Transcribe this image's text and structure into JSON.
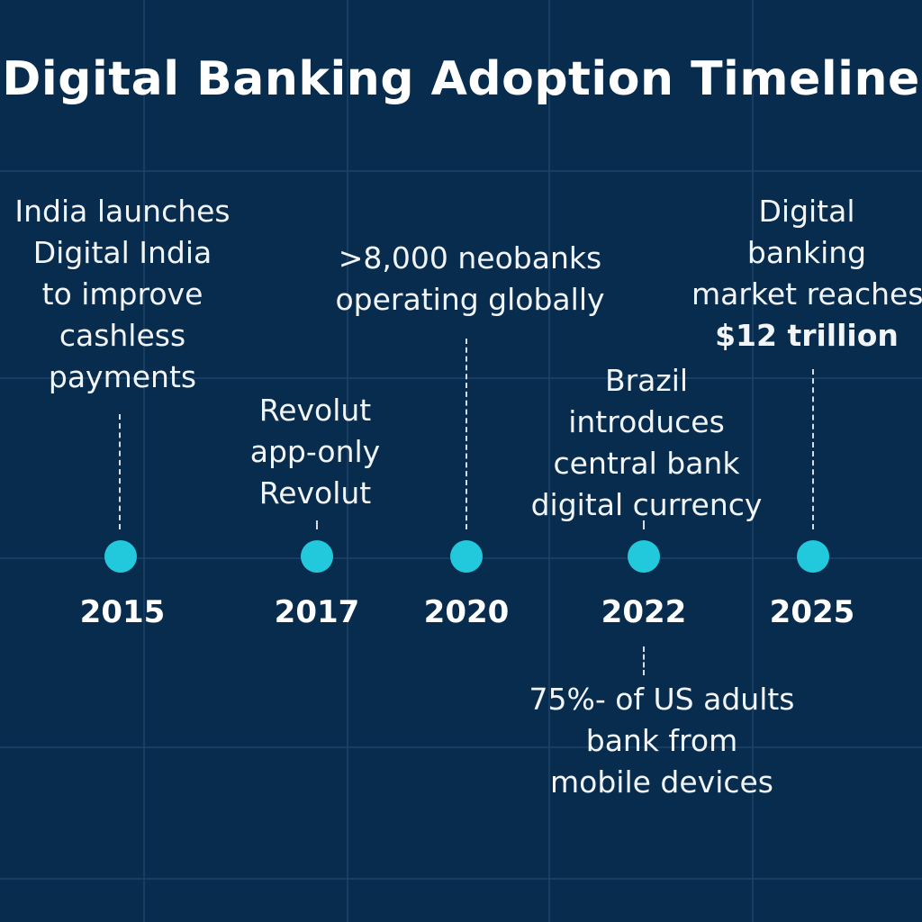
{
  "title": "Digital Banking Adoption Timeline",
  "colors": {
    "background": "#082c4e",
    "grid": "#1e4368",
    "dot": "#22c8dc",
    "text": "#f2f5f8"
  },
  "milestones": [
    {
      "year": "2015",
      "event": [
        "India launches",
        "Digital India",
        "to improve",
        "cashless",
        "payments"
      ],
      "position": "above"
    },
    {
      "year": "2017",
      "event": [
        "Revolut",
        "app-only",
        "Revolut"
      ],
      "position": "above"
    },
    {
      "year": "2020",
      "event": [
        ">8,000 neobanks",
        "operating globally"
      ],
      "position": "above"
    },
    {
      "year": "2022",
      "event": [
        "Brazil",
        "introduces",
        "central bank",
        "digital currency"
      ],
      "position": "above"
    },
    {
      "year": "2022",
      "event": [
        "75%- of US adults",
        "bank from",
        "mobile devices"
      ],
      "position": "below"
    },
    {
      "year": "2025",
      "event": [
        "Digital",
        "banking",
        "market reaches",
        "$12 trillion"
      ],
      "position": "above"
    }
  ]
}
